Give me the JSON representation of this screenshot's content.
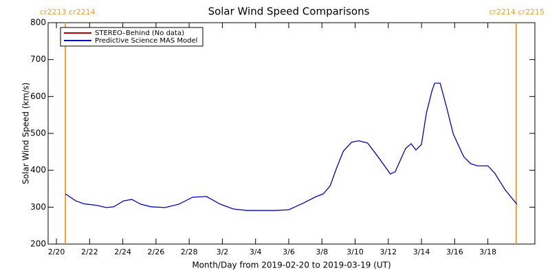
{
  "chart_data": {
    "type": "line",
    "title": "Solar Wind Speed Comparisons",
    "xlabel": "Month/Day from 2019-02-20 to 2019-03-19 (UT)",
    "ylabel": "Solar Wind Speed (km/s)",
    "x": [
      "2019-02-20T13:00",
      "2019-02-21T04:00",
      "2019-02-21T16:00",
      "2019-02-22T10:00",
      "2019-02-23T00:00",
      "2019-02-23T11:00",
      "2019-02-24T01:00",
      "2019-02-24T13:00",
      "2019-02-25T02:00",
      "2019-02-25T17:00",
      "2019-02-26T13:00",
      "2019-02-27T09:00",
      "2019-02-28T05:00",
      "2019-03-01T01:00",
      "2019-03-01T21:00",
      "2019-03-02T16:00",
      "2019-03-03T12:00",
      "2019-03-05T04:00",
      "2019-03-06T00:00",
      "2019-03-06T20:00",
      "2019-03-07T16:00",
      "2019-03-08T02:00",
      "2019-03-08T12:00",
      "2019-03-08T21:00",
      "2019-03-09T07:00",
      "2019-03-09T19:00",
      "2019-03-10T05:00",
      "2019-03-10T18:00",
      "2019-03-11T09:00",
      "2019-03-12T03:00",
      "2019-03-12T10:00",
      "2019-03-13T01:00",
      "2019-03-13T09:00",
      "2019-03-13T16:00",
      "2019-03-14T00:00",
      "2019-03-14T07:00",
      "2019-03-14T15:00",
      "2019-03-14T19:00",
      "2019-03-15T03:00",
      "2019-03-15T12:00",
      "2019-03-15T22:00",
      "2019-03-16T13:00",
      "2019-03-16T23:00",
      "2019-03-17T09:00",
      "2019-03-18T00:00",
      "2019-03-18T10:00",
      "2019-03-19T01:00",
      "2019-03-19T14:00",
      "2019-03-19T18:00"
    ],
    "series": [
      {
        "name": "STEREO–Behind (No data)",
        "color": "#b00000",
        "values": [
          null,
          null,
          null,
          null,
          null,
          null,
          null,
          null,
          null,
          null,
          null,
          null,
          null,
          null,
          null,
          null,
          null,
          null,
          null,
          null,
          null,
          null,
          null,
          null,
          null,
          null,
          null,
          null,
          null,
          null,
          null,
          null,
          null,
          null,
          null,
          null,
          null,
          null,
          null,
          null,
          null,
          null,
          null,
          null,
          null,
          null,
          null,
          null,
          null
        ]
      },
      {
        "name": "Predictive Science MAS Model",
        "color": "#0000c8",
        "values": [
          336,
          317,
          309,
          305,
          299,
          301,
          317,
          321,
          308,
          301,
          299,
          308,
          327,
          329,
          308,
          295,
          291,
          291,
          293,
          310,
          329,
          336,
          358,
          405,
          452,
          476,
          480,
          474,
          437,
          390,
          396,
          459,
          472,
          455,
          470,
          554,
          614,
          636,
          636,
          573,
          498,
          437,
          418,
          412,
          412,
          392,
          347,
          317,
          308
        ]
      }
    ],
    "xlim": [
      "2019-02-19T12:00",
      "2019-03-20T20:00"
    ],
    "xticks": [
      {
        "value": "2019-02-20T00:00",
        "label": "2/20"
      },
      {
        "value": "2019-02-22T00:00",
        "label": "2/22"
      },
      {
        "value": "2019-02-24T00:00",
        "label": "2/24"
      },
      {
        "value": "2019-02-26T00:00",
        "label": "2/26"
      },
      {
        "value": "2019-02-28T00:00",
        "label": "2/28"
      },
      {
        "value": "2019-03-02T00:00",
        "label": "3/2"
      },
      {
        "value": "2019-03-04T00:00",
        "label": "3/4"
      },
      {
        "value": "2019-03-06T00:00",
        "label": "3/6"
      },
      {
        "value": "2019-03-08T00:00",
        "label": "3/8"
      },
      {
        "value": "2019-03-10T00:00",
        "label": "3/10"
      },
      {
        "value": "2019-03-12T00:00",
        "label": "3/12"
      },
      {
        "value": "2019-03-14T00:00",
        "label": "3/14"
      },
      {
        "value": "2019-03-16T00:00",
        "label": "3/16"
      },
      {
        "value": "2019-03-18T00:00",
        "label": "3/18"
      }
    ],
    "ylim": [
      200,
      800
    ],
    "yticks": [
      200,
      300,
      400,
      500,
      600,
      700,
      800
    ],
    "markers": [
      {
        "x": "2019-02-20T13:00",
        "label": "cr2213 cr2214",
        "color": "#f0a030"
      },
      {
        "x": "2019-03-19T17:00",
        "label": "cr2214 cr2215",
        "color": "#f0a030"
      }
    ]
  }
}
